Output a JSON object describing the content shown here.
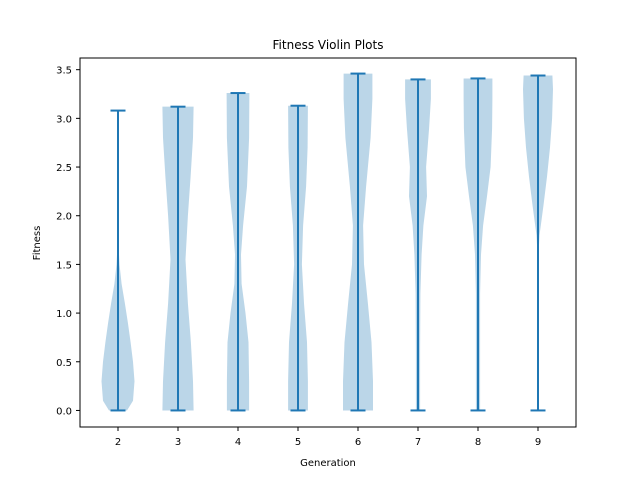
{
  "chart_data": {
    "type": "violin",
    "title": "Fitness Violin Plots",
    "xlabel": "Generation",
    "ylabel": "Fitness",
    "categories": [
      "2",
      "3",
      "4",
      "5",
      "6",
      "7",
      "8",
      "9"
    ],
    "ylim": [
      -0.17,
      3.62
    ],
    "yticks": [
      0.0,
      0.5,
      1.0,
      1.5,
      2.0,
      2.5,
      3.0,
      3.5
    ],
    "ytick_labels": [
      "0.0",
      "0.5",
      "1.0",
      "1.5",
      "2.0",
      "2.5",
      "3.0",
      "3.5"
    ],
    "grid": false,
    "legend": "none",
    "colors": {
      "violin_body": "#1f77b4",
      "violin_body_opacity": 0.3,
      "stat_lines": "#1f77b4",
      "axes": "#000000"
    },
    "violins": [
      {
        "category": "2",
        "min": 0.0,
        "max": 3.08,
        "profile": [
          [
            0.0,
            0.3
          ],
          [
            0.1,
            0.5
          ],
          [
            0.3,
            0.55
          ],
          [
            0.5,
            0.5
          ],
          [
            0.7,
            0.42
          ],
          [
            0.9,
            0.33
          ],
          [
            1.1,
            0.23
          ],
          [
            1.3,
            0.12
          ],
          [
            1.5,
            0.05
          ],
          [
            1.8,
            0.0
          ],
          [
            3.08,
            0.0
          ]
        ]
      },
      {
        "category": "3",
        "min": 0.0,
        "max": 3.12,
        "profile": [
          [
            0.0,
            0.52
          ],
          [
            0.3,
            0.5
          ],
          [
            0.7,
            0.43
          ],
          [
            1.1,
            0.33
          ],
          [
            1.55,
            0.25
          ],
          [
            2.0,
            0.33
          ],
          [
            2.4,
            0.42
          ],
          [
            2.8,
            0.5
          ],
          [
            3.12,
            0.52
          ]
        ]
      },
      {
        "category": "4",
        "min": 0.0,
        "max": 3.26,
        "profile": [
          [
            0.0,
            0.37
          ],
          [
            0.3,
            0.37
          ],
          [
            0.7,
            0.35
          ],
          [
            1.0,
            0.25
          ],
          [
            1.3,
            0.12
          ],
          [
            1.6,
            0.1
          ],
          [
            1.9,
            0.17
          ],
          [
            2.3,
            0.3
          ],
          [
            2.8,
            0.37
          ],
          [
            3.26,
            0.38
          ]
        ]
      },
      {
        "category": "5",
        "min": 0.0,
        "max": 3.13,
        "profile": [
          [
            0.0,
            0.33
          ],
          [
            0.3,
            0.33
          ],
          [
            0.7,
            0.3
          ],
          [
            1.1,
            0.2
          ],
          [
            1.5,
            0.13
          ],
          [
            1.9,
            0.17
          ],
          [
            2.3,
            0.27
          ],
          [
            2.7,
            0.32
          ],
          [
            3.13,
            0.33
          ]
        ]
      },
      {
        "category": "6",
        "min": 0.0,
        "max": 3.46,
        "profile": [
          [
            0.0,
            0.5
          ],
          [
            0.3,
            0.5
          ],
          [
            0.7,
            0.45
          ],
          [
            1.1,
            0.33
          ],
          [
            1.5,
            0.2
          ],
          [
            1.9,
            0.17
          ],
          [
            2.3,
            0.27
          ],
          [
            2.8,
            0.42
          ],
          [
            3.2,
            0.48
          ],
          [
            3.46,
            0.48
          ]
        ]
      },
      {
        "category": "7",
        "min": 0.0,
        "max": 3.4,
        "profile": [
          [
            0.0,
            0.07
          ],
          [
            0.6,
            0.07
          ],
          [
            1.2,
            0.08
          ],
          [
            1.6,
            0.12
          ],
          [
            1.9,
            0.18
          ],
          [
            2.2,
            0.3
          ],
          [
            2.5,
            0.27
          ],
          [
            2.9,
            0.37
          ],
          [
            3.2,
            0.43
          ],
          [
            3.4,
            0.43
          ]
        ]
      },
      {
        "category": "8",
        "min": 0.0,
        "max": 3.41,
        "profile": [
          [
            0.0,
            0.07
          ],
          [
            0.6,
            0.07
          ],
          [
            1.2,
            0.07
          ],
          [
            1.6,
            0.1
          ],
          [
            1.9,
            0.17
          ],
          [
            2.2,
            0.3
          ],
          [
            2.5,
            0.42
          ],
          [
            2.9,
            0.47
          ],
          [
            3.2,
            0.48
          ],
          [
            3.41,
            0.48
          ]
        ]
      },
      {
        "category": "9",
        "min": 0.0,
        "max": 3.44,
        "profile": [
          [
            0.0,
            0.0
          ],
          [
            1.5,
            0.0
          ],
          [
            1.8,
            0.05
          ],
          [
            2.1,
            0.18
          ],
          [
            2.4,
            0.3
          ],
          [
            2.7,
            0.4
          ],
          [
            3.0,
            0.47
          ],
          [
            3.3,
            0.5
          ],
          [
            3.44,
            0.48
          ]
        ]
      }
    ]
  }
}
